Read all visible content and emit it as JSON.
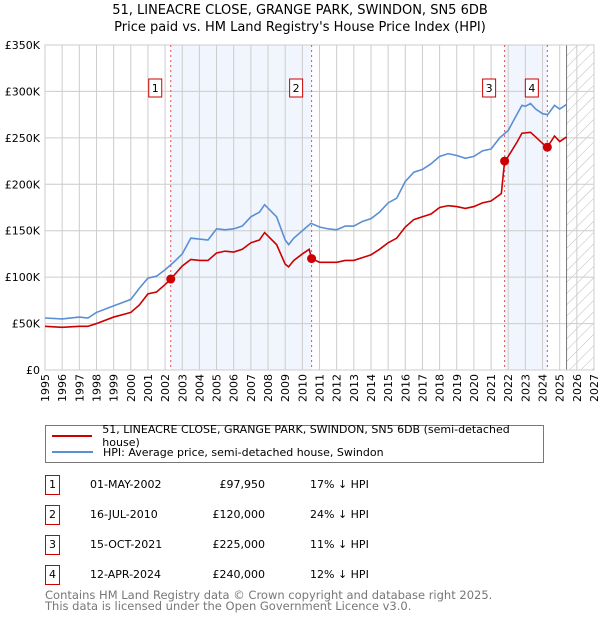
{
  "chart_data": {
    "type": "line",
    "title": "51, LINEACRE CLOSE, GRANGE PARK, SWINDON, SN5 6DB",
    "subtitle": "Price paid vs. HM Land Registry's House Price Index (HPI)",
    "xlim": [
      1995,
      2027
    ],
    "ylim": [
      0,
      350000
    ],
    "yticks": [
      0,
      50000,
      100000,
      150000,
      200000,
      250000,
      300000,
      350000
    ],
    "ytick_labels": [
      "£0",
      "£50K",
      "£100K",
      "£150K",
      "£200K",
      "£250K",
      "£300K",
      "£350K"
    ],
    "xticks": [
      "1995",
      "1996",
      "1997",
      "1998",
      "1999",
      "2000",
      "2001",
      "2002",
      "2003",
      "2004",
      "2005",
      "2006",
      "2007",
      "2008",
      "2009",
      "2010",
      "2011",
      "2012",
      "2013",
      "2014",
      "2015",
      "2016",
      "2017",
      "2018",
      "2019",
      "2020",
      "2021",
      "2022",
      "2023",
      "2024",
      "2025",
      "2026",
      "2027"
    ],
    "grid": true,
    "forecast_hatch_from": 2025.4,
    "shaded_periods": [
      [
        2002.33,
        2010.54
      ],
      [
        2021.79,
        2024.28
      ]
    ],
    "series": [
      {
        "name": "51, LINEACRE CLOSE, GRANGE PARK, SWINDON, SN5 6DB (semi-detached house)",
        "color": "#cc0000",
        "x": [
          1995,
          1996,
          1997,
          1997.5,
          1998,
          1999,
          2000,
          2000.5,
          2001,
          2001.5,
          2002,
          2002.33,
          2003,
          2003.5,
          2004,
          2004.5,
          2005,
          2005.5,
          2006,
          2006.5,
          2007,
          2007.5,
          2007.8,
          2008.5,
          2009,
          2009.2,
          2009.5,
          2010,
          2010.4,
          2010.54,
          2011,
          2012,
          2012.5,
          2013,
          2013.5,
          2014,
          2014.5,
          2015,
          2015.5,
          2016,
          2016.5,
          2017,
          2017.5,
          2018,
          2018.5,
          2019,
          2019.5,
          2020,
          2020.5,
          2021,
          2021.6,
          2021.79,
          2022,
          2022.5,
          2022.8,
          2023.3,
          2023.6,
          2024,
          2024.28,
          2024.7,
          2025,
          2025.4
        ],
        "y": [
          47,
          46,
          47,
          47,
          50,
          57,
          62,
          70,
          82,
          84,
          92,
          97.95,
          112,
          119,
          118,
          118,
          126,
          128,
          127,
          130,
          137,
          140,
          148,
          135,
          114,
          111,
          118,
          125,
          130,
          120,
          116,
          116,
          118,
          118,
          121,
          124,
          130,
          137,
          142,
          154,
          162,
          165,
          168,
          175,
          177,
          176,
          174,
          176,
          180,
          182,
          190,
          225,
          230,
          245,
          255,
          256,
          251,
          244,
          240,
          252,
          246,
          251
        ]
      },
      {
        "name": "HPI: Average price, semi-detached house, Swindon",
        "color": "#5b8fd4",
        "x": [
          1995,
          1996,
          1997,
          1997.5,
          1998,
          1999,
          2000,
          2000.5,
          2001,
          2001.5,
          2002,
          2002.5,
          2003,
          2003.5,
          2004,
          2004.5,
          2005,
          2005.5,
          2006,
          2006.5,
          2007,
          2007.5,
          2007.8,
          2008.5,
          2009,
          2009.2,
          2009.5,
          2010,
          2010.5,
          2011,
          2011.5,
          2012,
          2012.5,
          2013,
          2013.5,
          2014,
          2014.5,
          2015,
          2015.5,
          2016,
          2016.5,
          2017,
          2017.5,
          2018,
          2018.5,
          2019,
          2019.5,
          2020,
          2020.5,
          2021,
          2021.5,
          2022,
          2022.5,
          2022.8,
          2023,
          2023.3,
          2023.6,
          2024,
          2024.3,
          2024.7,
          2025,
          2025.4
        ],
        "y": [
          56,
          55,
          57,
          56,
          62,
          69,
          76,
          88,
          99,
          101,
          108,
          116,
          125,
          142,
          141,
          140,
          152,
          151,
          152,
          155,
          165,
          170,
          178,
          165,
          140,
          135,
          142,
          150,
          158,
          154,
          152,
          151,
          155,
          155,
          160,
          163,
          170,
          180,
          185,
          203,
          213,
          216,
          222,
          230,
          233,
          231,
          228,
          230,
          236,
          238,
          250,
          258,
          275,
          285,
          284,
          287,
          281,
          276,
          275,
          285,
          281,
          286
        ]
      }
    ],
    "sales": [
      {
        "id": "1",
        "x": 2002.33,
        "price": 97950
      },
      {
        "id": "2",
        "x": 2010.54,
        "price": 120000
      },
      {
        "id": "3",
        "x": 2021.79,
        "price": 225000
      },
      {
        "id": "4",
        "x": 2024.28,
        "price": 240000
      }
    ]
  },
  "legend": {
    "property": "51, LINEACRE CLOSE, GRANGE PARK, SWINDON, SN5 6DB (semi-detached house)",
    "hpi": "HPI: Average price, semi-detached house, Swindon"
  },
  "transactions": [
    {
      "id": "1",
      "date": "01-MAY-2002",
      "price": "£97,950",
      "hpi": "17% ↓ HPI"
    },
    {
      "id": "2",
      "date": "16-JUL-2010",
      "price": "£120,000",
      "hpi": "24% ↓ HPI"
    },
    {
      "id": "3",
      "date": "15-OCT-2021",
      "price": "£225,000",
      "hpi": "11% ↓ HPI"
    },
    {
      "id": "4",
      "date": "12-APR-2024",
      "price": "£240,000",
      "hpi": "12% ↓ HPI"
    }
  ],
  "footer": {
    "line1": "Contains HM Land Registry data © Crown copyright and database right 2025.",
    "line2": "This data is licensed under the Open Government Licence v3.0."
  }
}
